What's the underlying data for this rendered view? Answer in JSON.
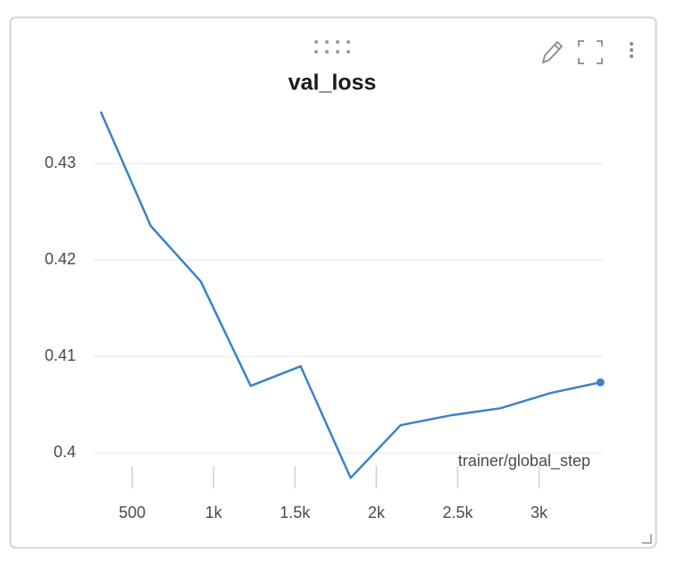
{
  "chart_data": {
    "type": "line",
    "title": "val_loss",
    "x_label": "trainer/global_step",
    "x": [
      307,
      614,
      921,
      1228,
      1535,
      1842,
      2149,
      2456,
      2763,
      3070,
      3377
    ],
    "values": [
      0.43537,
      0.42352,
      0.41778,
      0.40694,
      0.40898,
      0.39741,
      0.40287,
      0.40389,
      0.40463,
      0.4062,
      0.40731
    ],
    "color": "#3b82c9",
    "xlim": [
      264,
      3392
    ],
    "ylim": [
      0.3965,
      0.4363
    ],
    "xticks": [
      500,
      {
        "value": 1000,
        "label": "1k"
      },
      {
        "value": 1500,
        "label": "1.5k"
      },
      {
        "value": 2000,
        "label": "2k"
      },
      {
        "value": 2500,
        "label": "2.5k"
      },
      {
        "value": 3000,
        "label": "3k"
      }
    ],
    "yticks": [
      {
        "value": 0.4,
        "label": "0.4"
      },
      0.41,
      0.42,
      0.43
    ],
    "grid": true
  }
}
